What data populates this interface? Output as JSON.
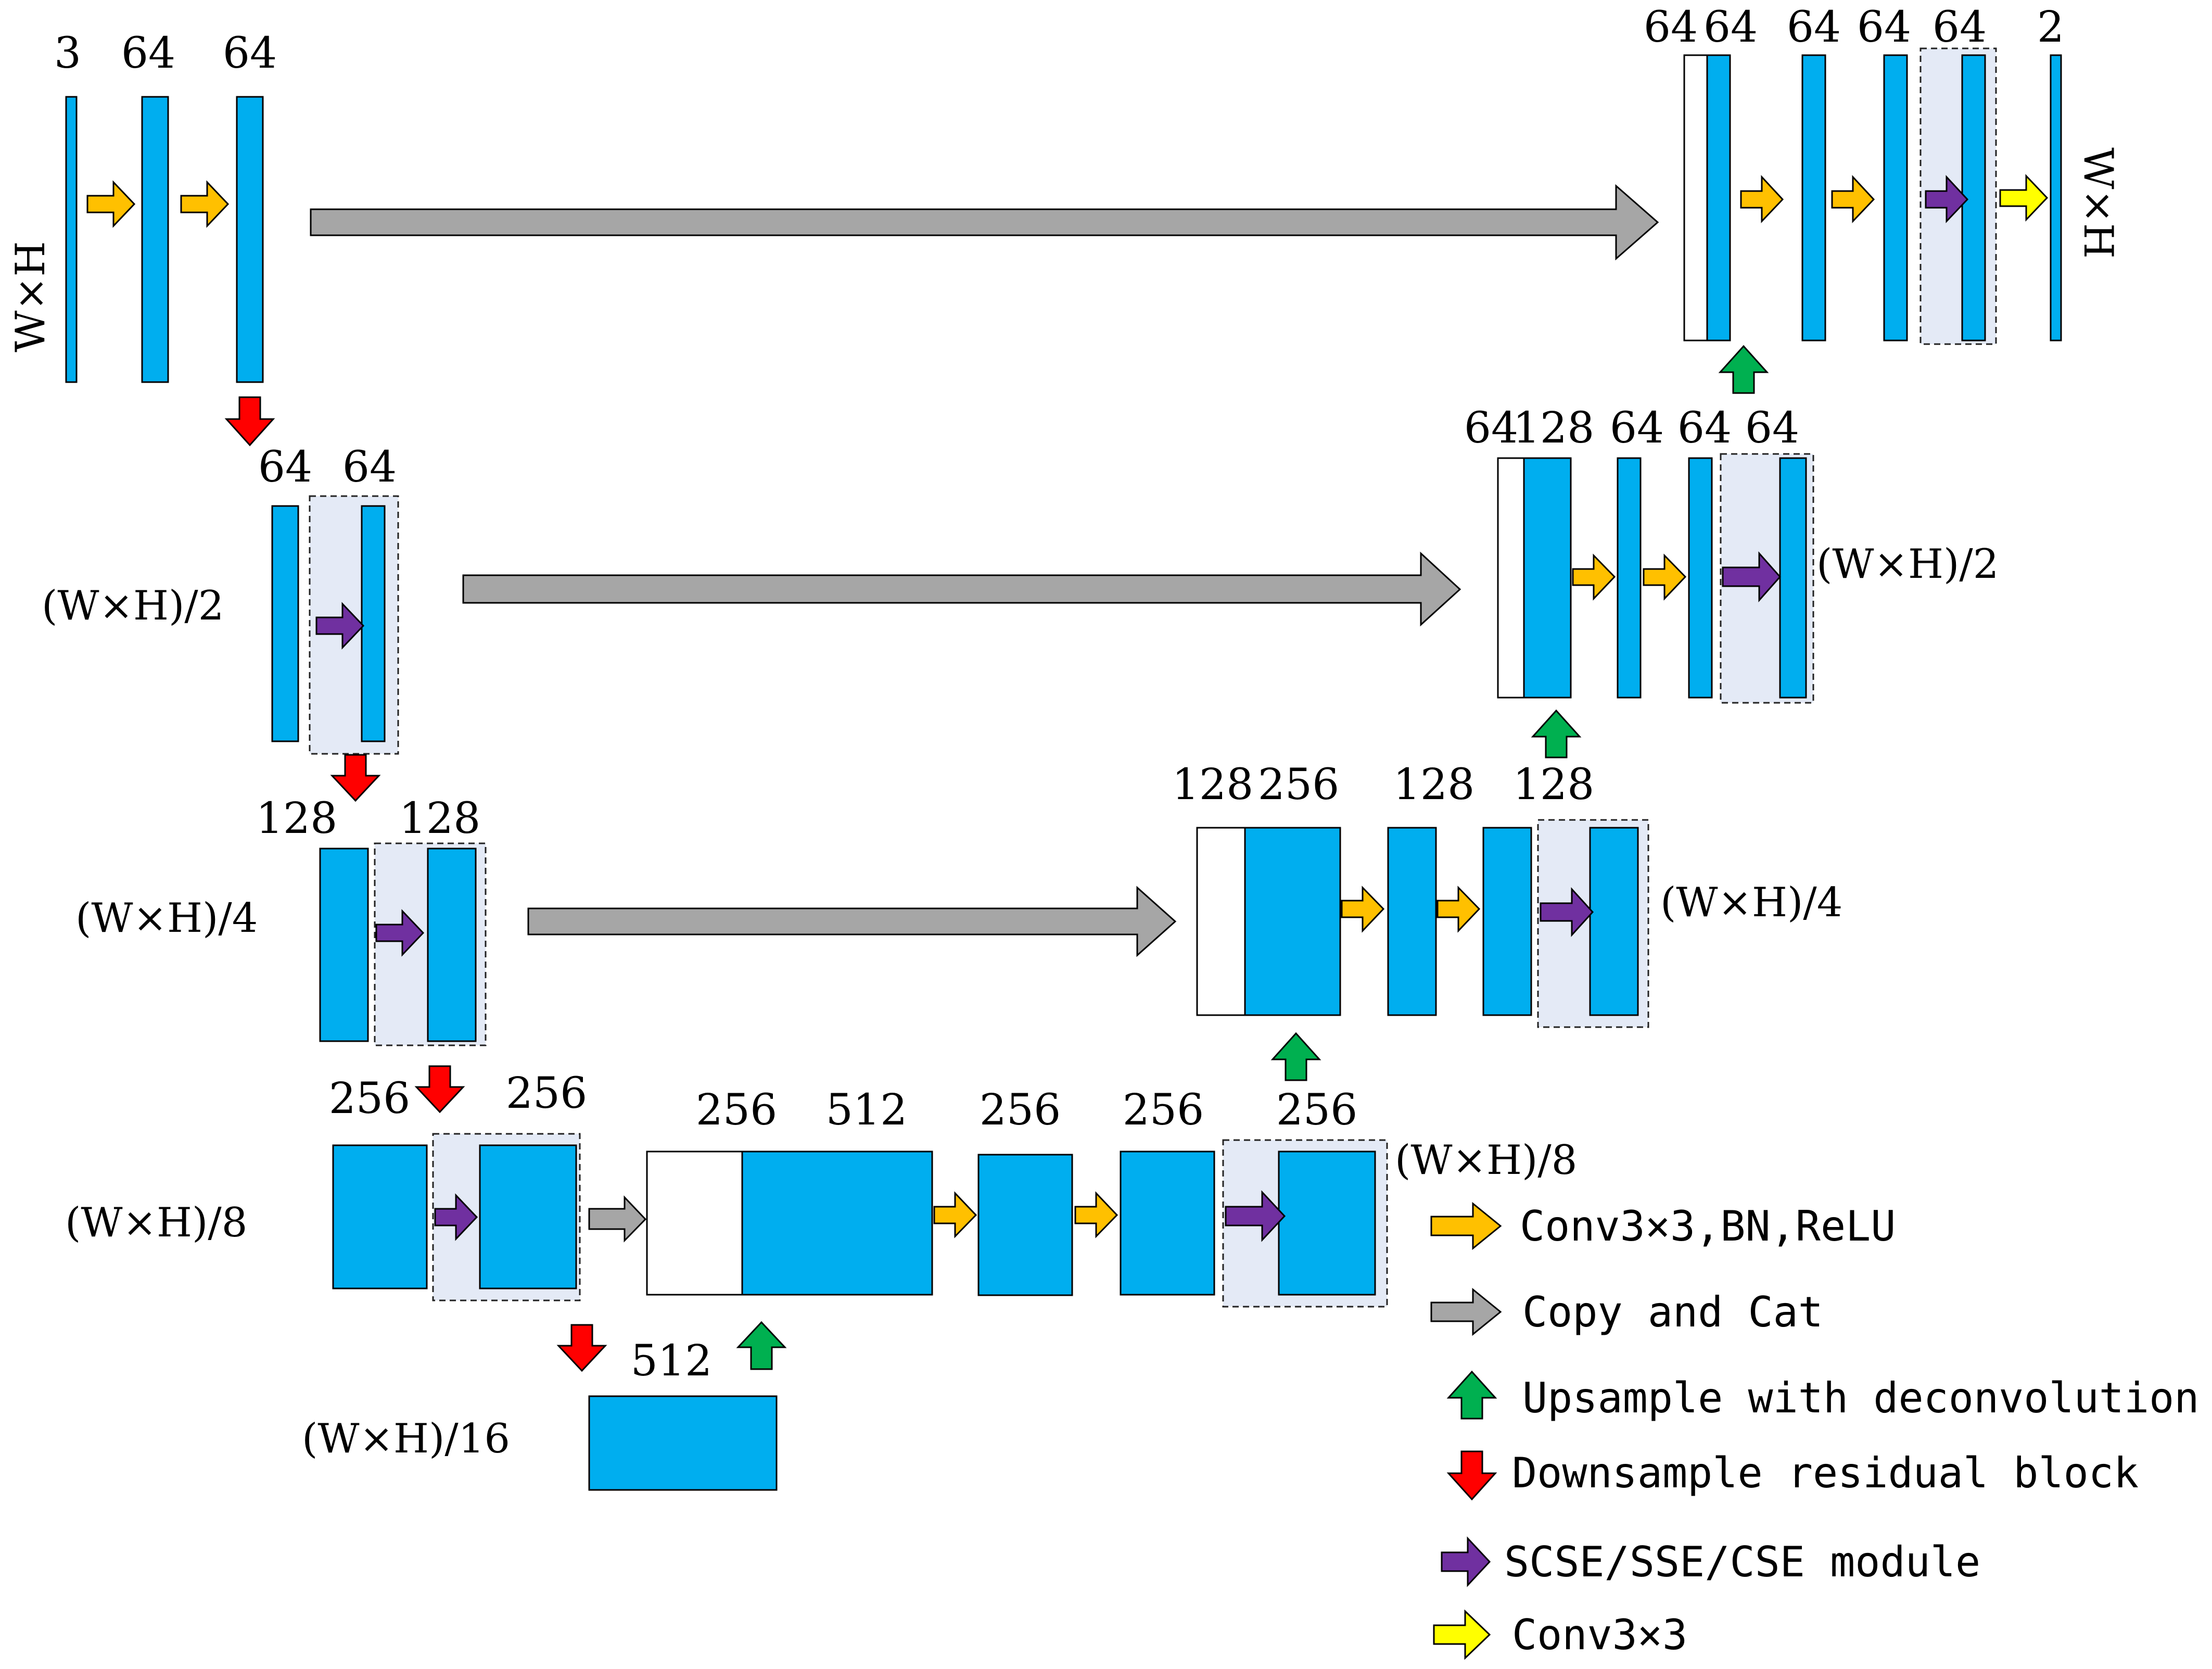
{
  "colors": {
    "feature_map": "#00aeef",
    "concat_map": "#ffffff",
    "se_module_box": "#e4eaf6",
    "conv_bn_relu": "#ffc000",
    "copy_and_cat": "#a6a6a6",
    "upsample": "#00b050",
    "downsample": "#ff0000",
    "scse": "#7030a0",
    "conv3x3": "#ffff00"
  },
  "channels": {
    "level1_encoder": [
      "3",
      "64",
      "64"
    ],
    "level1_decoder": [
      "64",
      "64",
      "64",
      "64",
      "64",
      "2"
    ],
    "level2_encoder": [
      "64",
      "64"
    ],
    "level2_decoder": [
      "64",
      "128",
      "64",
      "64",
      "64"
    ],
    "level3_encoder": [
      "128",
      "128"
    ],
    "level3_decoder": [
      "128",
      "256",
      "128",
      "128"
    ],
    "level4_encoder": [
      "256",
      "256"
    ],
    "level4_decoder": [
      "256",
      "512",
      "256",
      "256",
      "256"
    ],
    "level5": [
      "512"
    ]
  },
  "dims": {
    "level1_left": "W×H",
    "level1_right": "W×H",
    "level2_left": "(W×H)/2",
    "level2_right": "(W×H)/2",
    "level3_left": "(W×H)/4",
    "level3_right": "(W×H)/4",
    "level4_left": "(W×H)/8",
    "level4_right": "(W×H)/8",
    "level5": "(W×H)/16"
  },
  "legend": [
    {
      "key": "conv_bn_relu",
      "label": "Conv3×3,BN,ReLU",
      "color": "#ffc000",
      "icon": "right-arrow"
    },
    {
      "key": "copy_and_cat",
      "label": "Copy and Cat",
      "color": "#a6a6a6",
      "icon": "right-arrow"
    },
    {
      "key": "upsample",
      "label": "Upsample with deconvolution",
      "color": "#00b050",
      "icon": "up-arrow"
    },
    {
      "key": "downsample",
      "label": "Downsample residual block",
      "color": "#ff0000",
      "icon": "down-arrow"
    },
    {
      "key": "scse",
      "label": "SCSE/SSE/CSE module",
      "color": "#7030a0",
      "icon": "right-arrow"
    },
    {
      "key": "conv3x3",
      "label": "Conv3×3",
      "color": "#ffff00",
      "icon": "right-arrow"
    }
  ]
}
